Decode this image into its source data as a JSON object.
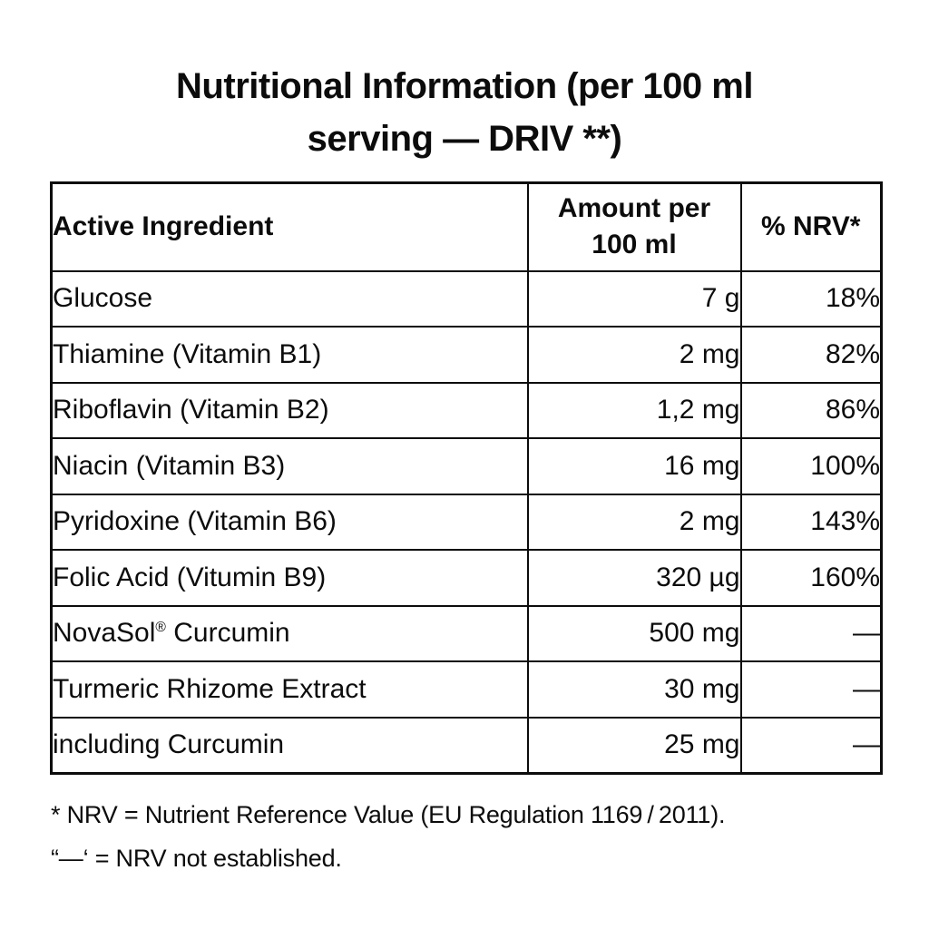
{
  "title": {
    "line1": "Nutritional Information (per 100 ml",
    "line2": "serving — DRIV **)"
  },
  "table": {
    "headers": {
      "ingredient": "Active Ingredient",
      "amount_line1": "Amount per",
      "amount_line2": "100 ml",
      "nrv": "% NRV*"
    },
    "rows": [
      {
        "ingredient": "Glucose",
        "amount": "7 g",
        "nrv": "18%"
      },
      {
        "ingredient": "Thiamine (Vitamin B1)",
        "amount": "2 mg",
        "nrv": "82%"
      },
      {
        "ingredient": "Riboflavin (Vitamin B2)",
        "amount": "1,2 mg",
        "nrv": "86%"
      },
      {
        "ingredient": "Niacin (Vitamin B3)",
        "amount": "16 mg",
        "nrv": "100%"
      },
      {
        "ingredient": "Pyridoxine (Vitamin B6)",
        "amount": "2 mg",
        "nrv": "143%"
      },
      {
        "ingredient": "Folic Acid (Vitumin B9)",
        "amount": "320 µg",
        "nrv": "160%"
      },
      {
        "ingredient": "NovaSol® Curcumin",
        "amount": "500 mg",
        "nrv": "—"
      },
      {
        "ingredient": "Turmeric Rhizome Extract",
        "amount": "30 mg",
        "nrv": "—"
      },
      {
        "ingredient": "including Curcumin",
        "amount": "25 mg",
        "nrv": "—"
      }
    ]
  },
  "footnotes": {
    "line1": "* NRV = Nutrient Reference Value (EU Regulation 1169 / 2011).",
    "line2": "“—‘ = NRV not established."
  },
  "colors": {
    "text": "#0c0c0c",
    "border": "#0c0c0c",
    "background": "#ffffff"
  }
}
